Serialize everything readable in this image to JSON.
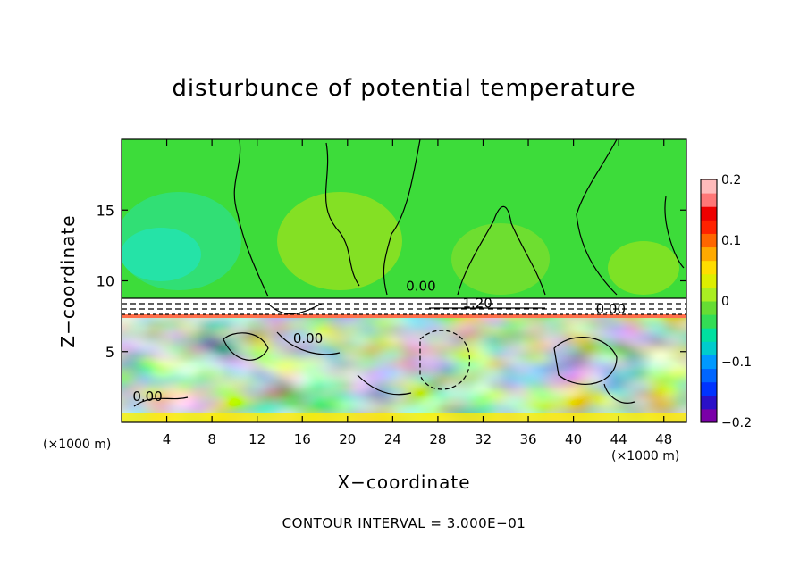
{
  "chart_data": {
    "type": "heatmap",
    "title": "disturbunce of potential temperature",
    "xlabel": "X−coordinate",
    "ylabel": "Z−coordinate",
    "x_unit": "(×1000 m)",
    "y_unit": "(×1000 m)",
    "xlim": [
      0,
      50
    ],
    "ylim": [
      0,
      20
    ],
    "x_ticks": [
      4,
      8,
      12,
      16,
      20,
      24,
      28,
      32,
      36,
      40,
      44,
      48
    ],
    "y_ticks": [
      5,
      10,
      15
    ],
    "colorbar": {
      "min": -0.2,
      "max": 0.2,
      "tick_values": [
        0.2,
        0.1,
        0,
        -0.1,
        -0.2
      ],
      "tick_labels": [
        "0.2",
        "0.1",
        "0",
        "−0.1",
        "−0.2"
      ],
      "colors": [
        "#7a00a8",
        "#2a10c8",
        "#0033ff",
        "#0066ff",
        "#0099ff",
        "#00cccc",
        "#00e0a0",
        "#33dd55",
        "#66dd33",
        "#aaee22",
        "#ddee00",
        "#ffdd00",
        "#ffaa00",
        "#ff6600",
        "#ff2200",
        "#ee0000",
        "#ff7777",
        "#ffbbbb"
      ]
    },
    "contour_labels": [
      {
        "x": 2.3,
        "z": 1.5,
        "text": "0.00"
      },
      {
        "x": 16.5,
        "z": 5.6,
        "text": "0.00"
      },
      {
        "x": 26.5,
        "z": 9.3,
        "text": "0.00"
      },
      {
        "x": 31.5,
        "z": 8.1,
        "text": "1.20"
      },
      {
        "x": 43.3,
        "z": 7.7,
        "text": "0.00"
      }
    ],
    "contour_interval": "CONTOUR INTERVAL = 3.000E−01"
  }
}
